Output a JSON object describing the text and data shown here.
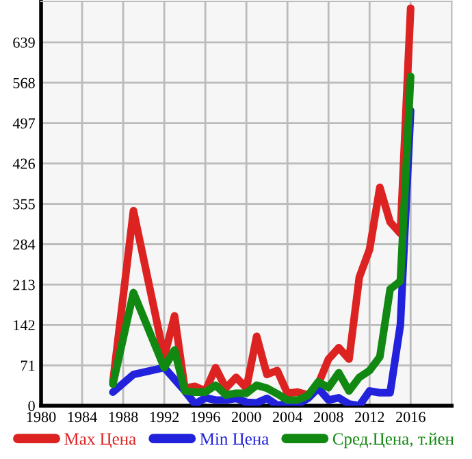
{
  "chart_data": {
    "type": "line",
    "xlim": [
      1980,
      2020
    ],
    "xticks": [
      1980,
      1984,
      1988,
      1992,
      1996,
      2000,
      2004,
      2008,
      2012,
      2016
    ],
    "ylim": [
      0,
      711
    ],
    "yticks": [
      0,
      71,
      142,
      213,
      284,
      355,
      426,
      497,
      568,
      639
    ],
    "grid": true,
    "legend": "bottom",
    "marker": "none",
    "line_style": "solid",
    "series": [
      {
        "name": "Max Цена",
        "color": "#dd2222",
        "x": [
          1987,
          1989,
          1992,
          1993,
          1994,
          1995,
          1996,
          1997,
          1998,
          1999,
          2000,
          2001,
          2002,
          2003,
          2004,
          2005,
          2006,
          2007,
          2008,
          2009,
          2010,
          2011,
          2012,
          2013,
          2014,
          2015,
          2016
        ],
        "values": [
          42,
          343,
          86,
          158,
          31,
          34,
          26,
          67,
          31,
          50,
          31,
          122,
          55,
          62,
          22,
          24,
          19,
          38,
          82,
          102,
          82,
          226,
          275,
          384,
          323,
          303,
          699
        ]
      },
      {
        "name": "Min Цена",
        "color": "#2222dd",
        "x": [
          1987,
          1989,
          1992,
          1994,
          1995,
          1996,
          1997,
          1998,
          1999,
          2000,
          2001,
          2002,
          2003,
          2004,
          2005,
          2006,
          2007,
          2008,
          2009,
          2010,
          2011,
          2012,
          2013,
          2014,
          2015,
          2016
        ],
        "values": [
          24,
          55,
          67,
          26,
          3,
          14,
          10,
          10,
          13,
          6,
          5,
          13,
          1,
          3,
          3,
          13,
          31,
          10,
          14,
          3,
          0,
          26,
          23,
          23,
          142,
          519
        ]
      },
      {
        "name": "Сред.Цена, т.йен",
        "color": "#118811",
        "x": [
          1987,
          1989,
          1992,
          1993,
          1994,
          1995,
          1996,
          1997,
          1998,
          1999,
          2000,
          2001,
          2002,
          2003,
          2004,
          2005,
          2006,
          2007,
          2008,
          2009,
          2010,
          2011,
          2012,
          2013,
          2014,
          2015,
          2016
        ],
        "values": [
          38,
          199,
          67,
          98,
          26,
          24,
          24,
          36,
          19,
          22,
          22,
          36,
          31,
          21,
          10,
          10,
          18,
          42,
          32,
          58,
          26,
          50,
          62,
          86,
          205,
          219,
          579
        ]
      }
    ]
  }
}
